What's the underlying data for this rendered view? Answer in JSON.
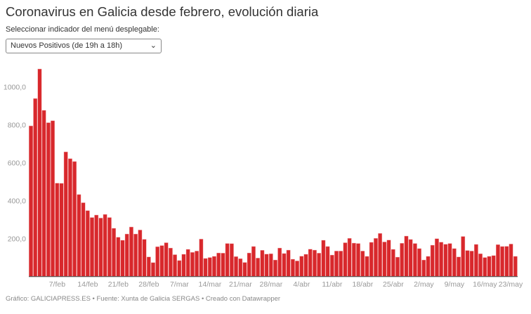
{
  "title": "Coronavirus en Galicia desde febrero, evolución diaria",
  "dropdown": {
    "label": "Seleccionar indicador del menú desplegable:",
    "selected": "Nuevos Positivos (de 19h a 18h)"
  },
  "footer": "Gráfico: GALICIAPRESS.ES • Fuente: Xunta de Galicia SERGAS • Creado con Datawrapper",
  "chart_data": {
    "type": "bar",
    "color": "#d8282c",
    "ylim": [
      0,
      1100
    ],
    "yticks": [
      {
        "v": 200,
        "label": "200,0"
      },
      {
        "v": 400,
        "label": "400,0"
      },
      {
        "v": 600,
        "label": "600,0"
      },
      {
        "v": 800,
        "label": "800,0"
      },
      {
        "v": 1000,
        "label": "1000,0"
      }
    ],
    "xticks": [
      "7/feb",
      "14/feb",
      "21/feb",
      "28/feb",
      "7/mar",
      "14/mar",
      "21/mar",
      "28/mar",
      "4/abr",
      "11/abr",
      "18/abr",
      "25/abr",
      "2/may",
      "9/may",
      "16/may",
      "23/may"
    ],
    "categories": [
      "1/feb",
      "2/feb",
      "3/feb",
      "4/feb",
      "5/feb",
      "6/feb",
      "7/feb",
      "8/feb",
      "9/feb",
      "10/feb",
      "11/feb",
      "12/feb",
      "13/feb",
      "14/feb",
      "15/feb",
      "16/feb",
      "17/feb",
      "18/feb",
      "19/feb",
      "20/feb",
      "21/feb",
      "22/feb",
      "23/feb",
      "24/feb",
      "25/feb",
      "26/feb",
      "27/feb",
      "28/feb",
      "1/mar",
      "2/mar",
      "3/mar",
      "4/mar",
      "5/mar",
      "6/mar",
      "7/mar",
      "8/mar",
      "9/mar",
      "10/mar",
      "11/mar",
      "12/mar",
      "13/mar",
      "14/mar",
      "15/mar",
      "16/mar",
      "17/mar",
      "18/mar",
      "19/mar",
      "20/mar",
      "21/mar",
      "22/mar",
      "23/mar",
      "24/mar",
      "25/mar",
      "26/mar",
      "27/mar",
      "28/mar",
      "29/mar",
      "30/mar",
      "31/mar",
      "1/abr",
      "2/abr",
      "3/abr",
      "4/abr",
      "5/abr",
      "6/abr",
      "7/abr",
      "8/abr",
      "9/abr",
      "10/abr",
      "11/abr",
      "12/abr",
      "13/abr",
      "14/abr",
      "15/abr",
      "16/abr",
      "17/abr",
      "18/abr",
      "19/abr",
      "20/abr",
      "21/abr",
      "22/abr",
      "23/abr",
      "24/abr",
      "25/abr",
      "26/abr",
      "27/abr",
      "28/abr",
      "29/abr",
      "30/abr",
      "1/may",
      "2/may",
      "3/may",
      "4/may",
      "5/may",
      "6/may",
      "7/may",
      "8/may",
      "9/may",
      "10/may",
      "11/may",
      "12/may",
      "13/may",
      "14/may",
      "15/may",
      "16/may",
      "17/may",
      "18/may",
      "19/may",
      "20/may",
      "21/may",
      "22/may",
      "23/may"
    ],
    "values": [
      793,
      937,
      1093,
      875,
      810,
      820,
      491,
      490,
      656,
      620,
      605,
      431,
      388,
      346,
      310,
      323,
      307,
      326,
      310,
      253,
      206,
      190,
      223,
      260,
      223,
      244,
      195,
      102,
      72,
      156,
      162,
      177,
      149,
      114,
      83,
      116,
      142,
      126,
      133,
      196,
      94,
      99,
      105,
      123,
      122,
      173,
      172,
      104,
      93,
      73,
      123,
      157,
      96,
      137,
      117,
      119,
      86,
      149,
      120,
      138,
      90,
      81,
      106,
      116,
      143,
      138,
      122,
      190,
      157,
      112,
      133,
      133,
      177,
      200,
      175,
      173,
      133,
      105,
      179,
      200,
      226,
      181,
      191,
      142,
      101,
      174,
      212,
      194,
      173,
      146,
      86,
      105,
      164,
      198,
      180,
      169,
      173,
      146,
      102,
      210,
      136,
      133,
      168,
      119,
      99,
      105,
      109,
      167,
      157,
      158,
      170,
      105
    ]
  }
}
